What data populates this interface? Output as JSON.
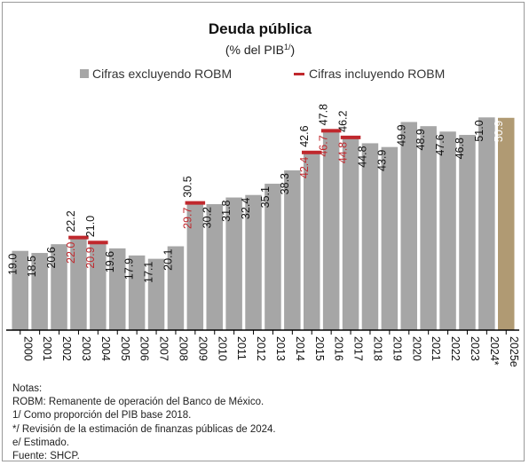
{
  "chart_data": {
    "type": "bar",
    "title": "Deuda pública",
    "subtitle": "(% del PIB",
    "subtitle_sup": "1/",
    "subtitle_close": ")",
    "legend": [
      {
        "label": "Cifras excluyendo ROBM",
        "color": "#a6a6a6",
        "shape": "square"
      },
      {
        "label": "Cifras incluyendo ROBM",
        "color": "#c0282d",
        "shape": "dash"
      }
    ],
    "categories": [
      "2000",
      "2001",
      "2002",
      "2003",
      "2004",
      "2005",
      "2006",
      "2007",
      "2008",
      "2009",
      "2010",
      "2011",
      "2012",
      "2013",
      "2014",
      "2015",
      "2016",
      "2017",
      "2018",
      "2019",
      "2020",
      "2021",
      "2022",
      "2023",
      "2024*",
      "2025e"
    ],
    "series": [
      {
        "name": "Cifras excluyendo ROBM",
        "values": [
          19.0,
          18.5,
          20.6,
          22.2,
          21.0,
          19.6,
          17.9,
          17.1,
          20.1,
          30.5,
          30.2,
          31.8,
          32.4,
          35.1,
          38.3,
          42.6,
          47.8,
          46.2,
          44.8,
          43.9,
          49.9,
          48.9,
          47.6,
          46.8,
          51.0,
          50.9
        ],
        "labels": [
          "19.0",
          "18.5",
          "20.6",
          "22.2",
          "21.0",
          "19.6",
          "17.9",
          "17.1",
          "20.1",
          "30.5",
          "30.2",
          "31.8",
          "32.4",
          "35.1",
          "38.3",
          "42.6",
          "47.8",
          "46.2",
          "44.8",
          "43.9",
          "49.9",
          "48.9",
          "47.6",
          "46.8",
          "51.0",
          "50.9"
        ]
      },
      {
        "name": "Cifras incluyendo ROBM",
        "points": [
          {
            "category": "2003",
            "value": 22.0,
            "label": "22.0"
          },
          {
            "category": "2004",
            "value": 20.9,
            "label": "20.9"
          },
          {
            "category": "2009",
            "value": 29.7,
            "label": "29.7"
          },
          {
            "category": "2015",
            "value": 42.4,
            "label": "42.4"
          },
          {
            "category": "2016",
            "value": 46.7,
            "label": "46.7"
          },
          {
            "category": "2017",
            "value": 44.8,
            "label": "44.8"
          }
        ]
      }
    ],
    "estimate_category": "2025e",
    "colors": {
      "bar": "#a6a6a6",
      "estimate": "#b09a73",
      "robm": "#c0282d",
      "axis": "#000000"
    },
    "xlabel": "",
    "ylabel": "",
    "ylim": [
      0,
      56
    ]
  },
  "notes": {
    "heading": "Notas:",
    "lines": [
      "ROBM: Remanente de operación del Banco de México.",
      "1/ Como proporción del PIB base 2018.",
      "*/ Revisión de la estimación de finanzas públicas de 2024.",
      "e/ Estimado.",
      "Fuente: SHCP."
    ]
  }
}
